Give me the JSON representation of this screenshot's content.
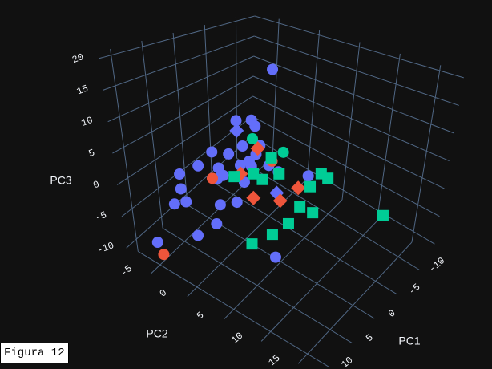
{
  "caption": "Figura 12",
  "chart_data": {
    "type": "scatter3d",
    "xlabel": "PC1",
    "ylabel": "PC2",
    "zlabel": "PC3",
    "xlim": [
      -13,
      12
    ],
    "ylim": [
      -8,
      18
    ],
    "zlim": [
      -12,
      21
    ],
    "xticks": [
      -10,
      -5,
      0,
      5,
      10
    ],
    "yticks": [
      -5,
      0,
      5,
      10,
      15
    ],
    "zticks": [
      -10,
      -5,
      0,
      5,
      10,
      15,
      20
    ],
    "grid": true,
    "series": [
      {
        "color": "#636efa",
        "symbol": "circle",
        "x": [
          -2.2,
          -1.1,
          1.5,
          6.2,
          3.4,
          5.7,
          8.5,
          -4.6,
          3.7,
          7.1,
          -1.5,
          7.6,
          1.6,
          11.1,
          9.3,
          7.9,
          3.1,
          9.3,
          9.0,
          8.6,
          7.7,
          8.2,
          8.6,
          8.7,
          11.1,
          1.1,
          -9.3,
          -3.3,
          0.1,
          2.1
        ],
        "y": [
          2.4,
          -1.5,
          2.4,
          6.3,
          -1.5,
          2.4,
          6.3,
          -1.5,
          2.4,
          6.3,
          2.4,
          2.4,
          -1.5,
          2.4,
          -1.5,
          2.4,
          2.4,
          -1.5,
          -2.8,
          -1.5,
          2.4,
          5.0,
          2.4,
          -0.2,
          -4.1,
          5.0,
          2.4,
          2.4,
          2.4,
          2.4
        ],
        "z": [
          18.4,
          7.6,
          11.1,
          13.9,
          4.5,
          7.5,
          11.8,
          -0.9,
          4.7,
          8.2,
          1.7,
          6.2,
          -0.6,
          8.1,
          4.0,
          4.7,
          1.6,
          1.7,
          -1.6,
          -0.7,
          0.6,
          2.7,
          -1.8,
          -5.1,
          -7.1,
          -10.4,
          -5.9,
          -0.6,
          6.1,
          4.5
        ]
      },
      {
        "color": "#636efa",
        "symbol": "diamond",
        "x": [
          4.1,
          -3.0
        ],
        "y": [
          2.4,
          2.4
        ],
        "z": [
          10.5,
          -4.2
        ]
      },
      {
        "color": "#ef553b",
        "symbol": "circle",
        "x": [
          11.9,
          8.8,
          -2.1
        ],
        "y": [
          -2.8,
          2.4,
          2.4
        ],
        "z": [
          -7.6,
          5.2,
          2.1
        ]
      },
      {
        "color": "#ef553b",
        "symbol": "diamond",
        "x": [
          0.5,
          1.5,
          0.1,
          -3.4,
          3.7
        ],
        "y": [
          2.4,
          2.4,
          5.0,
          5.0,
          2.4
        ],
        "z": [
          5.8,
          -2.0,
          -1.7,
          -1.8,
          3.3
        ]
      },
      {
        "color": "#00cc96",
        "symbol": "square",
        "x": [
          4.9,
          1.4,
          3.4,
          0.3,
          -7.9,
          -7.3,
          -3.8,
          0.1,
          -4.5,
          0.4,
          1.7,
          3.9,
          -11.5,
          1.7
        ],
        "y": [
          2.4,
          2.4,
          5.0,
          5.0,
          5.0,
          6.3,
          6.3,
          7.6,
          6.3,
          6.3,
          5.0,
          3.7,
          11.5,
          5.0
        ],
        "z": [
          3.5,
          2.0,
          3.7,
          2.9,
          -2.4,
          -1.9,
          -1.0,
          -1.1,
          -6.1,
          -4.5,
          -6.2,
          -7.1,
          -8.4,
          6.3
        ]
      },
      {
        "color": "#00cc96",
        "symbol": "circle",
        "x": [
          -0.5,
          1.4
        ],
        "y": [
          5.0,
          2.4
        ],
        "z": [
          6.1,
          7.9
        ]
      }
    ]
  }
}
